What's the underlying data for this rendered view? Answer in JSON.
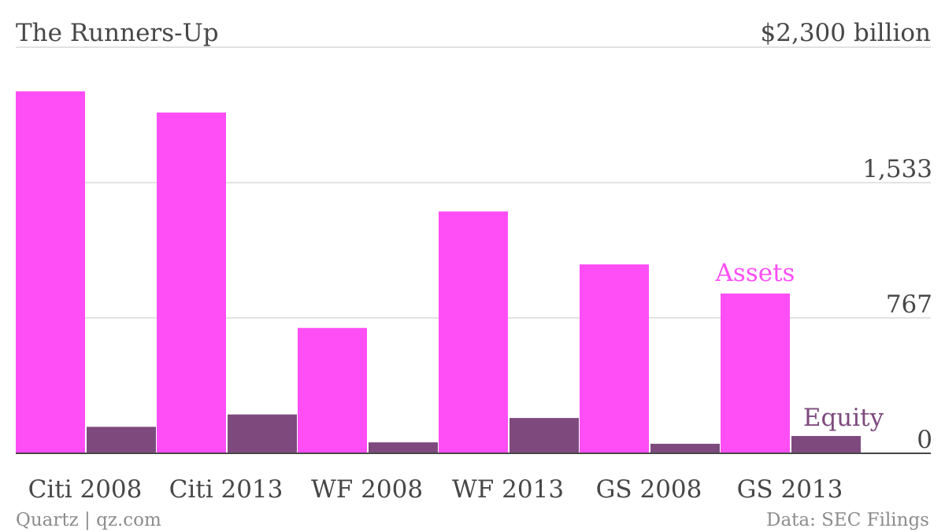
{
  "chart_data": {
    "type": "bar",
    "title": "The Runners-Up",
    "unit_label": "$2,300 billion",
    "categories": [
      "Citi 2008",
      "Citi 2013",
      "WF 2008",
      "WF 2013",
      "GS 2008",
      "GS 2013"
    ],
    "series": [
      {
        "name": "Assets",
        "color": "#ff4ef5",
        "values": [
          2050,
          1930,
          710,
          1370,
          1070,
          905
        ]
      },
      {
        "name": "Equity",
        "color": "#7e4a7e",
        "values": [
          150,
          220,
          62,
          200,
          54,
          98
        ]
      }
    ],
    "ylim": [
      0,
      2300
    ],
    "yticks": [
      {
        "value": 0,
        "label": "0"
      },
      {
        "value": 767,
        "label": "767"
      },
      {
        "value": 1533,
        "label": "1,533"
      },
      {
        "value": 2300,
        "label": ""
      }
    ],
    "grid": true,
    "source": "Data: SEC Filings",
    "credit": "Quartz | qz.com"
  }
}
